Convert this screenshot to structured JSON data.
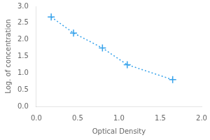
{
  "chart_data": {
    "type": "line",
    "x": [
      0.18,
      0.45,
      0.8,
      1.1,
      1.65
    ],
    "values": [
      2.68,
      2.2,
      1.75,
      1.25,
      0.8
    ],
    "xlabel": "Optical Density",
    "ylabel": "Log. of concentration",
    "xlim": [
      0,
      2
    ],
    "ylim": [
      0,
      3
    ],
    "xticks": [
      {
        "value": 0,
        "label": "0.0"
      },
      0.5,
      {
        "value": 1,
        "label": "1.0"
      },
      1.5,
      {
        "value": 2,
        "label": "2.0"
      }
    ],
    "yticks": [
      {
        "value": 0,
        "label": "0.0"
      },
      0.5,
      {
        "value": 1,
        "label": "1.0"
      },
      1.5,
      {
        "value": 2,
        "label": "2.0"
      },
      2.5,
      {
        "value": 3,
        "label": "3.0"
      }
    ],
    "marker": "plus",
    "line_style": "dotted",
    "grid": false
  }
}
